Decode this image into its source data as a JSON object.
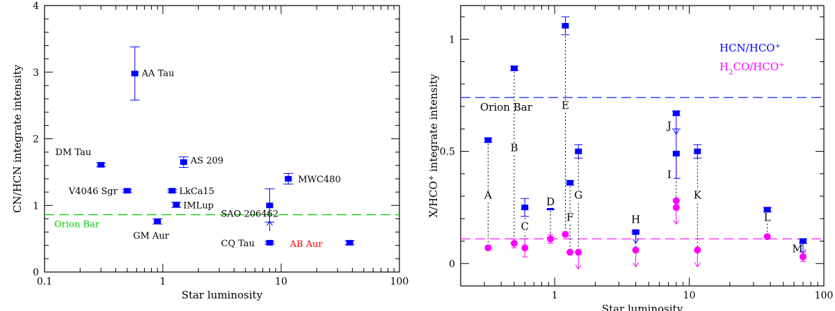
{
  "chart_data": [
    {
      "type": "scatter",
      "xscale": "log",
      "xlim": [
        0.1,
        100
      ],
      "ylim": [
        0,
        4
      ],
      "xlabel": "Star luminosity",
      "ylabel": "CN/HCN integrate intensity",
      "xticks": [
        {
          "v": 0.1,
          "label": "0.1"
        },
        {
          "v": 1,
          "label": "1"
        },
        {
          "v": 10,
          "label": "10"
        },
        {
          "v": 100,
          "label": "100"
        }
      ],
      "yticks": [
        {
          "v": 0,
          "label": "0"
        },
        {
          "v": 1,
          "label": "1"
        },
        {
          "v": 2,
          "label": "2"
        },
        {
          "v": 3,
          "label": "3"
        },
        {
          "v": 4,
          "label": "4"
        }
      ],
      "points": [
        {
          "label": "AA Tau",
          "x": 0.58,
          "y": 2.98,
          "err_lo": 0.4,
          "err_hi": 0.4,
          "label_color": "#000000"
        },
        {
          "label": "DM Tau",
          "x": 0.3,
          "y": 1.61,
          "err_lo": 0.03,
          "err_hi": 0.03,
          "label_color": "#000000"
        },
        {
          "label": "V4046 Sgr",
          "x": 0.5,
          "y": 1.22,
          "err_lo": 0.02,
          "err_hi": 0.02,
          "label_color": "#000000"
        },
        {
          "label": "AS 209",
          "x": 1.5,
          "y": 1.65,
          "err_lo": 0.08,
          "err_hi": 0.08,
          "label_color": "#000000"
        },
        {
          "label": "LkCa15",
          "x": 1.2,
          "y": 1.22,
          "err_lo": 0.02,
          "err_hi": 0.02,
          "label_color": "#000000"
        },
        {
          "label": "IMLup",
          "x": 1.3,
          "y": 1.01,
          "err_lo": 0.04,
          "err_hi": 0.04,
          "label_color": "#000000"
        },
        {
          "label": "GM Aur",
          "x": 0.9,
          "y": 0.76,
          "err_lo": 0.04,
          "err_hi": 0.04,
          "label_color": "#000000"
        },
        {
          "label": "SAO 206462",
          "x": 8,
          "y": 1.0,
          "err_lo": 0.25,
          "err_hi": 0.25,
          "label_color": "#000000"
        },
        {
          "label": "CQ Tau",
          "x": 8,
          "y": 0.44,
          "err_lo": 0.02,
          "err_hi": 0.02,
          "label_color": "#000000"
        },
        {
          "label": "MWC480",
          "x": 11.5,
          "y": 1.4,
          "err_lo": 0.08,
          "err_hi": 0.08,
          "label_color": "#000000"
        },
        {
          "label": "AB Aur",
          "x": 38,
          "y": 0.44,
          "err_lo": 0.03,
          "err_hi": 0.03,
          "label_color": "#ff0000"
        }
      ],
      "hlines": [
        {
          "y": 0.86,
          "label": "Orion Bar",
          "color": "#00cc00"
        }
      ],
      "point_color": "#0000ff"
    },
    {
      "type": "scatter",
      "xscale": "log",
      "xlim": [
        0.2,
        100
      ],
      "ylim": [
        -0.1,
        1.15
      ],
      "xlabel": "Star luminosity",
      "ylabel_parts": [
        "X/HCO",
        "+",
        " integrate intensity"
      ],
      "xticks": [
        {
          "v": 1,
          "label": "1"
        },
        {
          "v": 10,
          "label": "10"
        },
        {
          "v": 100,
          "label": "100"
        }
      ],
      "yticks": [
        {
          "v": 0,
          "label": "0"
        },
        {
          "v": 0.5,
          "label": "0.5"
        },
        {
          "v": 1,
          "label": "1"
        }
      ],
      "legend": [
        {
          "parts": [
            "HCN/HCO",
            "+"
          ],
          "color": "#0000ff"
        },
        {
          "parts": [
            "H",
            "2",
            "CO/HCO",
            "+"
          ],
          "color": "#ff00ff"
        }
      ],
      "hlines": [
        {
          "y": 0.74,
          "label": "Orion Bar",
          "color": "#0000ff"
        },
        {
          "y": 0.11,
          "label": "",
          "color": "#ff00ff"
        }
      ],
      "series": [
        {
          "name": "HCN/HCO+",
          "color": "#0000ff",
          "marker": "square",
          "points": [
            {
              "id": "A",
              "x": 0.32,
              "y": 0.55,
              "err": 0.01
            },
            {
              "id": "B",
              "x": 0.5,
              "y": 0.87,
              "err": 0.01
            },
            {
              "id": "C",
              "x": 0.6,
              "y": 0.25,
              "err": 0.04
            },
            {
              "id": "D",
              "x": 0.93,
              "y": 0.25,
              "err": 0.01
            },
            {
              "id": "E",
              "x": 1.2,
              "y": 1.06,
              "err": 0.04
            },
            {
              "id": "F",
              "x": 1.3,
              "y": 0.36,
              "err": 0.01
            },
            {
              "id": "G",
              "x": 1.5,
              "y": 0.5,
              "err": 0.03
            },
            {
              "id": "H",
              "x": 4,
              "y": 0.14,
              "err": 0.005
            },
            {
              "id": "J",
              "x": 8,
              "y": 0.67,
              "err": 0.01
            },
            {
              "id": "I",
              "x": 8,
              "y": 0.49,
              "err": 0.11
            },
            {
              "id": "K",
              "x": 11.5,
              "y": 0.5,
              "err": 0.03
            },
            {
              "id": "L",
              "x": 38,
              "y": 0.24,
              "err": 0.01
            },
            {
              "id": "M",
              "x": 70,
              "y": 0.1,
              "err": 0.01
            }
          ]
        },
        {
          "name": "H2CO/HCO+",
          "color": "#ff00ff",
          "marker": "circle",
          "points": [
            {
              "x": 0.32,
              "y": 0.07,
              "err": 0.005
            },
            {
              "x": 0.5,
              "y": 0.09,
              "err": 0.02
            },
            {
              "x": 0.6,
              "y": 0.07,
              "err": 0.04
            },
            {
              "x": 0.93,
              "y": 0.11,
              "err": 0.02
            },
            {
              "x": 1.2,
              "y": 0.13,
              "err": 0.01
            },
            {
              "x": 1.3,
              "y": 0.05,
              "err": 0
            },
            {
              "x": 1.5,
              "y": 0.05,
              "err": 0
            },
            {
              "x": 4,
              "y": 0.06,
              "err": 0
            },
            {
              "x": 8,
              "y": 0.28,
              "err": 0
            },
            {
              "x": 8,
              "y": 0.25,
              "err": 0
            },
            {
              "x": 11.5,
              "y": 0.06,
              "err": 0
            },
            {
              "x": 38,
              "y": 0.12,
              "err": 0.005
            },
            {
              "x": 70,
              "y": 0.03,
              "err": 0.02
            }
          ]
        }
      ]
    }
  ]
}
